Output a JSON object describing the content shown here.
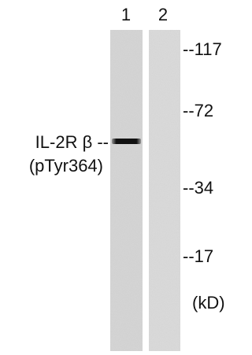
{
  "lanes": [
    "1",
    "2"
  ],
  "markers": [
    "--117",
    "--72",
    "--34",
    "--17"
  ],
  "unit": "(kD)",
  "protein": {
    "name": "IL-2R β --",
    "site": "(pTyr364)"
  }
}
